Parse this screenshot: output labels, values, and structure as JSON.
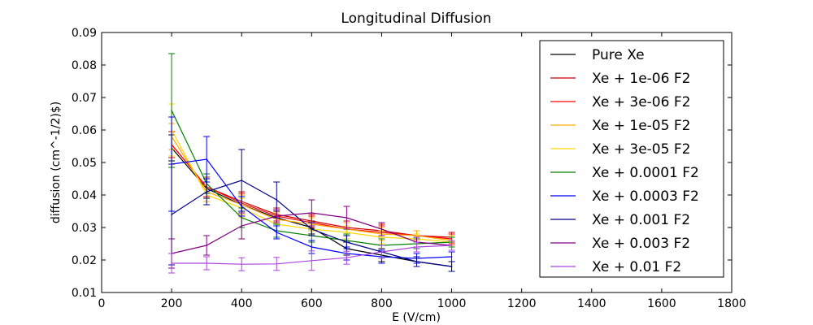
{
  "chart_data": {
    "type": "line",
    "title": "Longitudinal Diffusion",
    "xlabel": "E (V/cm)",
    "ylabel": "diffusion (cm^-1/2)$)",
    "xlim": [
      0,
      1800
    ],
    "ylim": [
      0.01,
      0.09
    ],
    "xticks": [
      "0",
      "200",
      "400",
      "600",
      "800",
      "1000",
      "1200",
      "1400",
      "1600",
      "1800"
    ],
    "yticks": [
      "0.01",
      "0.02",
      "0.03",
      "0.04",
      "0.05",
      "0.06",
      "0.07",
      "0.08",
      "0.09"
    ],
    "legend_position": "top-right",
    "grid": false,
    "x": [
      200,
      300,
      400,
      500,
      600,
      700,
      800,
      900,
      1000
    ],
    "series": [
      {
        "name": "Pure Xe",
        "color": "#000000",
        "values": [
          0.0545,
          0.042,
          0.037,
          0.033,
          0.03,
          0.0235,
          0.0215,
          0.0195,
          0.018
        ],
        "errors": [
          0.004,
          0.003,
          0.003,
          0.002,
          0.002,
          0.002,
          0.002,
          0.0015,
          0.0015
        ]
      },
      {
        "name": "Xe + 1e-06 F2",
        "color": "#cc0000",
        "values": [
          0.0555,
          0.0425,
          0.038,
          0.034,
          0.032,
          0.03,
          0.029,
          0.0275,
          0.027
        ],
        "errors": [
          0.004,
          0.003,
          0.003,
          0.002,
          0.002,
          0.002,
          0.002,
          0.0015,
          0.0015
        ]
      },
      {
        "name": "Xe + 3e-06 F2",
        "color": "#ff0000",
        "values": [
          0.0555,
          0.0425,
          0.0375,
          0.0335,
          0.0315,
          0.0295,
          0.0285,
          0.0275,
          0.0265
        ],
        "errors": [
          0.004,
          0.003,
          0.003,
          0.002,
          0.002,
          0.002,
          0.002,
          0.0015,
          0.0015
        ]
      },
      {
        "name": "Xe + 1e-05 F2",
        "color": "#ffaa00",
        "values": [
          0.058,
          0.041,
          0.037,
          0.0325,
          0.031,
          0.0295,
          0.028,
          0.0275,
          0.026
        ],
        "errors": [
          0.004,
          0.003,
          0.003,
          0.002,
          0.002,
          0.002,
          0.002,
          0.0015,
          0.0015
        ]
      },
      {
        "name": "Xe + 3e-05 F2",
        "color": "#ffd700",
        "values": [
          0.06,
          0.04,
          0.036,
          0.031,
          0.0295,
          0.0285,
          0.027,
          0.0265,
          0.0255
        ],
        "errors": [
          0.008,
          0.003,
          0.003,
          0.002,
          0.002,
          0.002,
          0.002,
          0.0015,
          0.0015
        ]
      },
      {
        "name": "Xe + 0.0001 F2",
        "color": "#008000",
        "values": [
          0.066,
          0.0435,
          0.033,
          0.029,
          0.0275,
          0.026,
          0.0245,
          0.025,
          0.0255
        ],
        "errors": [
          0.0175,
          0.003,
          0.003,
          0.002,
          0.002,
          0.002,
          0.002,
          0.0015,
          0.0015
        ]
      },
      {
        "name": "Xe + 0.0003 F2",
        "color": "#0000ff",
        "values": [
          0.0495,
          0.051,
          0.0365,
          0.0285,
          0.024,
          0.022,
          0.021,
          0.0205,
          0.021
        ],
        "errors": [
          0.0145,
          0.007,
          0.003,
          0.002,
          0.002,
          0.002,
          0.002,
          0.0015,
          0.0015
        ]
      },
      {
        "name": "Xe + 0.001 F2",
        "color": "#00008b",
        "values": [
          0.034,
          0.041,
          0.0445,
          0.0385,
          0.0295,
          0.0255,
          0.0225,
          0.0195,
          0.018
        ],
        "errors": [
          0.0155,
          0.004,
          0.0095,
          0.0055,
          0.002,
          0.002,
          0.002,
          0.0015,
          0.0015
        ]
      },
      {
        "name": "Xe + 0.003 F2",
        "color": "#800080",
        "values": [
          0.022,
          0.0245,
          0.0305,
          0.0335,
          0.0345,
          0.033,
          0.0295,
          0.0255,
          0.0245
        ],
        "errors": [
          0.0045,
          0.003,
          0.004,
          0.002,
          0.004,
          0.0035,
          0.002,
          0.0015,
          0.0015
        ]
      },
      {
        "name": "Xe + 0.01 F2",
        "color": "#aa44dd",
        "values": [
          0.019,
          0.019,
          0.0187,
          0.0188,
          0.0198,
          0.0207,
          0.0225,
          0.024,
          0.0245
        ],
        "errors": [
          0.003,
          0.002,
          0.002,
          0.002,
          0.003,
          0.002,
          0.002,
          0.0015,
          0.0015
        ]
      }
    ]
  }
}
